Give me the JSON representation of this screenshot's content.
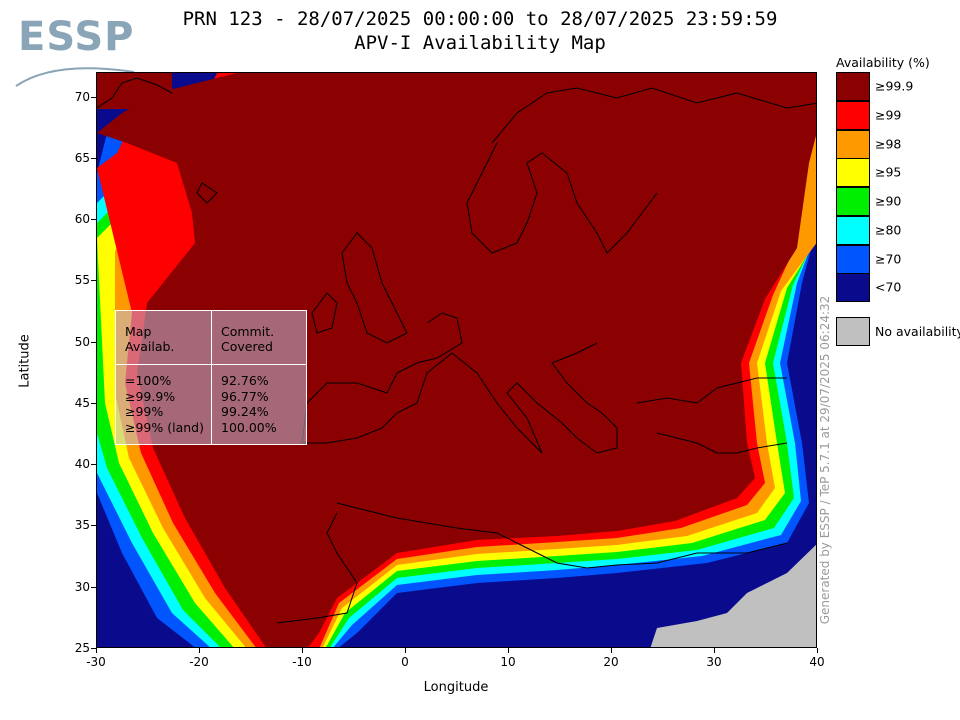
{
  "logo": {
    "text": "ESSP"
  },
  "title": {
    "line1": "PRN 123 - 28/07/2025 00:00:00 to 28/07/2025 23:59:59",
    "line2": "APV-I Availability Map"
  },
  "axes": {
    "xlabel": "Longitude",
    "ylabel": "Latitude",
    "x_ticks": [
      "-30",
      "-20",
      "-10",
      "0",
      "10",
      "20",
      "30",
      "40"
    ],
    "y_ticks": [
      "70",
      "65",
      "60",
      "55",
      "50",
      "45",
      "40",
      "35",
      "30",
      "25"
    ],
    "x_range": [
      -30,
      40
    ],
    "y_range": [
      25,
      72
    ]
  },
  "info_box": {
    "header_left": [
      "Map",
      "Availab."
    ],
    "header_right": [
      "Commit.",
      "Covered"
    ],
    "rows_left": [
      "=100%",
      "≥99.9%",
      "≥99%",
      "≥99% (land)"
    ],
    "rows_right": [
      "92.76%",
      "96.77%",
      "99.24%",
      "100.00%"
    ]
  },
  "legend": {
    "title": "Availability (%)",
    "items": [
      {
        "label": "≥99.9",
        "color": "#8b0000"
      },
      {
        "label": "≥99",
        "color": "#ff0000"
      },
      {
        "label": "≥98",
        "color": "#ff9900"
      },
      {
        "label": "≥95",
        "color": "#ffff00"
      },
      {
        "label": "≥90",
        "color": "#00ee00"
      },
      {
        "label": "≥80",
        "color": "#00ffff"
      },
      {
        "label": "≥70",
        "color": "#0055ff"
      },
      {
        "label": "<70",
        "color": "#0a0a8c"
      }
    ],
    "no_availability": {
      "label": "No availability",
      "color": "#c0c0c0"
    }
  },
  "generated_by": "Generated by ESSP / TeP 5.7.1 at 29/07/2025 06:24:32"
}
